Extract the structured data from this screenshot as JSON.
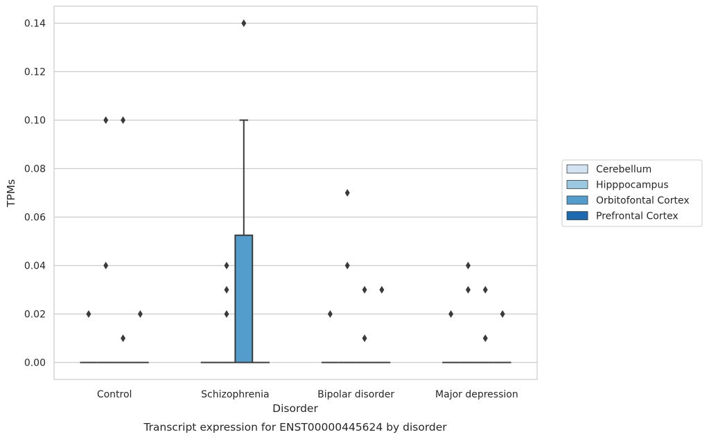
{
  "caption": "Transcript expression for ENST00000445624 by disorder",
  "chart_data": {
    "type": "box",
    "xlabel": "Disorder",
    "ylabel": "TPMs",
    "ylim": [
      -0.007,
      0.147
    ],
    "yticks": [
      0.0,
      0.02,
      0.04,
      0.06,
      0.08,
      0.1,
      0.12,
      0.14
    ],
    "ytick_labels": [
      "0.00",
      "0.02",
      "0.04",
      "0.06",
      "0.08",
      "0.10",
      "0.12",
      "0.14"
    ],
    "grid": "horizontal",
    "legend_position": "right",
    "categories": [
      "Control",
      "Schizophrenia",
      "Bipolar disorder",
      "Major depression"
    ],
    "series": [
      {
        "name": "Cerebellum",
        "color": "#d2e3f3",
        "boxes": [
          {
            "q1": 0,
            "median": 0,
            "q3": 0,
            "whisker_low": 0,
            "whisker_high": 0,
            "outliers": [
              0.02
            ]
          },
          {
            "q1": 0,
            "median": 0,
            "q3": 0,
            "whisker_low": 0,
            "whisker_high": 0,
            "outliers": []
          },
          {
            "q1": 0,
            "median": 0,
            "q3": 0,
            "whisker_low": 0,
            "whisker_high": 0,
            "outliers": [
              0.02
            ]
          },
          {
            "q1": 0,
            "median": 0,
            "q3": 0,
            "whisker_low": 0,
            "whisker_high": 0,
            "outliers": [
              0.02
            ]
          }
        ]
      },
      {
        "name": "Hipppocampus",
        "color": "#9ac8e0",
        "boxes": [
          {
            "q1": 0,
            "median": 0,
            "q3": 0,
            "whisker_low": 0,
            "whisker_high": 0,
            "outliers": [
              0.1,
              0.04
            ]
          },
          {
            "q1": 0,
            "median": 0,
            "q3": 0,
            "whisker_low": 0,
            "whisker_high": 0,
            "outliers": [
              0.04,
              0.03,
              0.02
            ]
          },
          {
            "q1": 0,
            "median": 0,
            "q3": 0,
            "whisker_low": 0,
            "whisker_high": 0,
            "outliers": [
              0.07,
              0.04
            ]
          },
          {
            "q1": 0,
            "median": 0,
            "q3": 0,
            "whisker_low": 0,
            "whisker_high": 0,
            "outliers": [
              0.04,
              0.03
            ]
          }
        ]
      },
      {
        "name": "Orbitofontal Cortex",
        "color": "#529dcc",
        "boxes": [
          {
            "q1": 0,
            "median": 0,
            "q3": 0,
            "whisker_low": 0,
            "whisker_high": 0,
            "outliers": [
              0.1,
              0.01
            ]
          },
          {
            "q1": 0,
            "median": 0,
            "q3": 0.0525,
            "whisker_low": 0,
            "whisker_high": 0.1,
            "outliers": [
              0.14
            ]
          },
          {
            "q1": 0,
            "median": 0,
            "q3": 0,
            "whisker_low": 0,
            "whisker_high": 0,
            "outliers": [
              0.03,
              0.01
            ]
          },
          {
            "q1": 0,
            "median": 0,
            "q3": 0,
            "whisker_low": 0,
            "whisker_high": 0,
            "outliers": [
              0.03,
              0.01
            ]
          }
        ]
      },
      {
        "name": "Prefrontal Cortex",
        "color": "#1c6aaf",
        "boxes": [
          {
            "q1": 0,
            "median": 0,
            "q3": 0,
            "whisker_low": 0,
            "whisker_high": 0,
            "outliers": [
              0.02
            ]
          },
          {
            "q1": 0,
            "median": 0,
            "q3": 0,
            "whisker_low": 0,
            "whisker_high": 0,
            "outliers": []
          },
          {
            "q1": 0,
            "median": 0,
            "q3": 0,
            "whisker_low": 0,
            "whisker_high": 0,
            "outliers": [
              0.03
            ]
          },
          {
            "q1": 0,
            "median": 0,
            "q3": 0,
            "whisker_low": 0,
            "whisker_high": 0,
            "outliers": [
              0.02
            ]
          }
        ]
      }
    ]
  }
}
